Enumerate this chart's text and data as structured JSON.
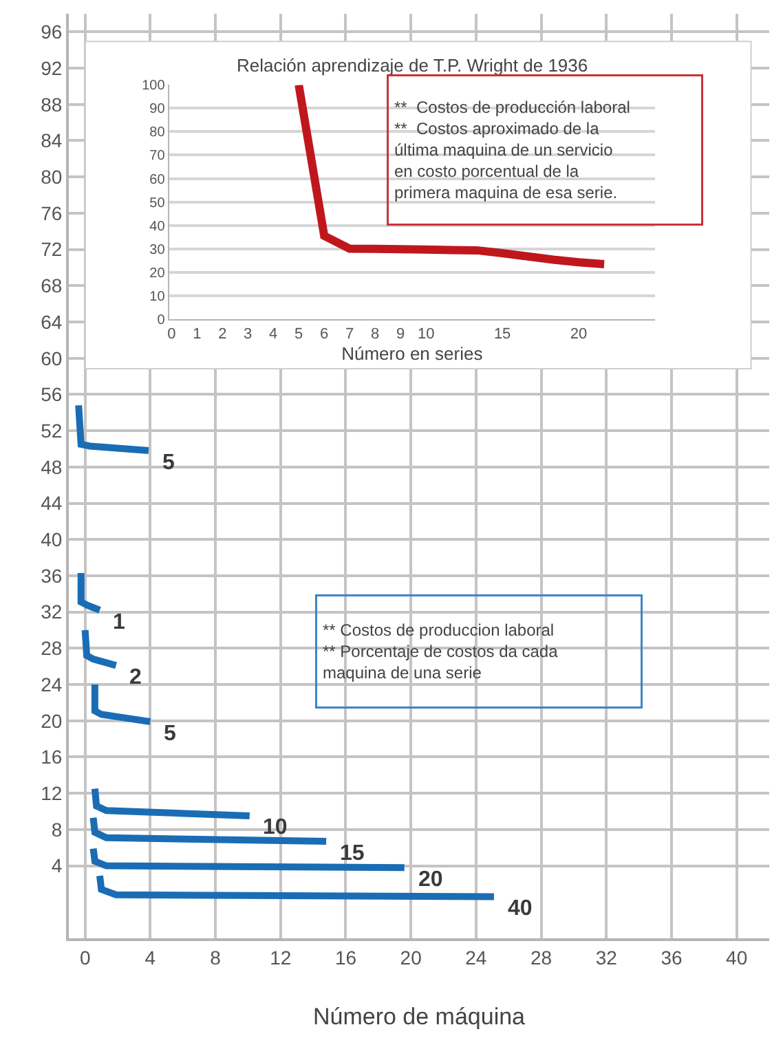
{
  "chart_data": [
    {
      "type": "line",
      "xlabel": "Número de máquina",
      "xlim": [
        -1,
        42
      ],
      "xticks": [
        0,
        4,
        8,
        12,
        16,
        20,
        24,
        28,
        32,
        36,
        40
      ],
      "ylim": [
        -4,
        98
      ],
      "yticks": [
        4,
        8,
        12,
        16,
        20,
        24,
        28,
        32,
        36,
        40,
        44,
        48,
        52,
        56,
        60,
        64,
        68,
        72,
        76,
        80,
        84,
        88,
        92,
        96
      ],
      "grid": true,
      "annotations": [
        "** Costos de produccion laboral\n** Porcentaje de costos da cada\nmaquina de una serie"
      ],
      "series": [
        {
          "name": "5",
          "color": "#1a6db4",
          "x": [
            -0.4,
            -0.25,
            0.3,
            3.9
          ],
          "values": [
            54.8,
            50.5,
            50.3,
            49.8
          ]
        },
        {
          "name": "1",
          "color": "#1a6db4",
          "x": [
            -0.25,
            -0.25,
            0.2,
            0.9
          ],
          "values": [
            36.3,
            33.1,
            32.7,
            32.2
          ]
        },
        {
          "name": "2",
          "color": "#1a6db4",
          "x": [
            0,
            0.1,
            0.5,
            1.9
          ],
          "values": [
            30,
            27.2,
            26.8,
            26.1
          ]
        },
        {
          "name": "5",
          "color": "#1a6db4",
          "x": [
            0.6,
            0.6,
            1.0,
            4.0
          ],
          "values": [
            24,
            21.1,
            20.7,
            19.9
          ]
        },
        {
          "name": "10",
          "color": "#1a6db4",
          "x": [
            0.6,
            0.7,
            1.3,
            10.1
          ],
          "values": [
            12.5,
            10.6,
            10.1,
            9.5
          ]
        },
        {
          "name": "15",
          "color": "#1a6db4",
          "x": [
            0.5,
            0.6,
            1.3,
            14.8
          ],
          "values": [
            9.3,
            7.7,
            7.1,
            6.7
          ]
        },
        {
          "name": "20",
          "color": "#1a6db4",
          "x": [
            0.5,
            0.6,
            1.3,
            19.6
          ],
          "values": [
            5.9,
            4.5,
            4.0,
            3.8
          ]
        },
        {
          "name": "40",
          "color": "#1a6db4",
          "x": [
            0.9,
            1.0,
            1.9,
            25.1
          ],
          "values": [
            2.9,
            1.4,
            0.8,
            0.6
          ]
        }
      ]
    },
    {
      "type": "line",
      "title": "Relación aprendizaje de T.P. Wright de 1936",
      "xlabel": "Número en series",
      "categories": [
        "0",
        "1",
        "2",
        "3",
        "4",
        "5",
        "6",
        "7",
        "8",
        "9",
        "10",
        null,
        null,
        "15",
        null,
        null,
        "20",
        null,
        null,
        null
      ],
      "ylim": [
        0,
        100
      ],
      "yticks": [
        0,
        10,
        20,
        30,
        40,
        50,
        60,
        70,
        80,
        90,
        100
      ],
      "grid": "y",
      "annotations": [
        "**  Costos de producción laboral\n**  Costos aproximado de la\núltima maquina de un servicio\nen costo porcentual de la\nprimera maquina de esa serie."
      ],
      "series": [
        {
          "color": "#c0171d",
          "values": [
            null,
            null,
            null,
            null,
            null,
            100,
            35.5,
            30,
            29.9,
            29.8,
            29.6,
            29.4,
            29.3,
            28.1,
            26.7,
            25.3,
            24.2,
            23.4,
            null,
            null
          ]
        }
      ]
    }
  ]
}
